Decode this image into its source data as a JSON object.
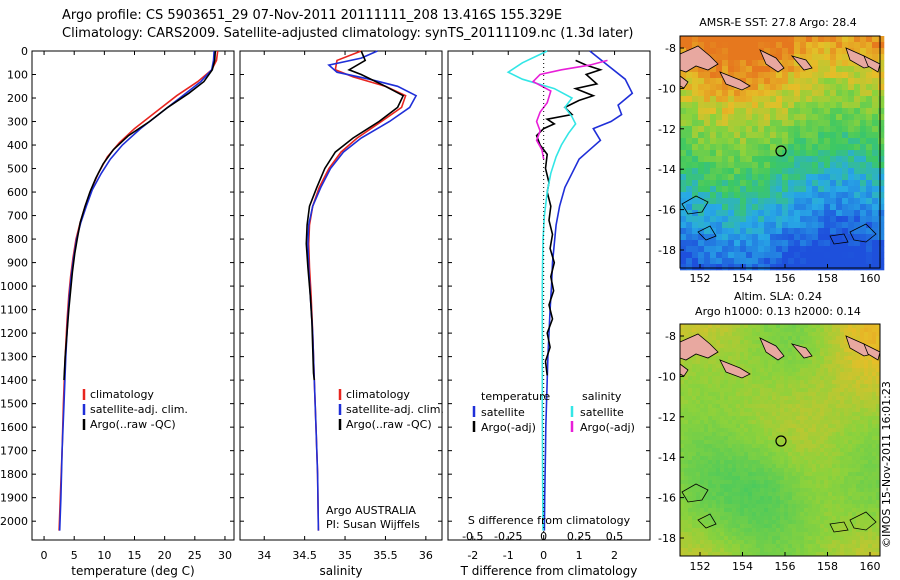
{
  "header": {
    "title_line1": "Argo profile: CS 5903651_29 07-Nov-2011 20111111_208 13.416S 155.329E",
    "title_line2": "Climatology: CARS2009. Satellite-adjusted climatology: synTS_20111109.nc (1.3d later)",
    "timestamp": "©IMOS 15-Nov-2011 16:01:23"
  },
  "colors": {
    "climatology": "#e8251f",
    "satellite": "#1f2fd8",
    "argo": "#000000",
    "sal_sat": "#33e6e6",
    "sal_argo": "#e81fd8"
  },
  "chart_data": [
    {
      "type": "line",
      "id": "temperature",
      "xlabel": "temperature (deg C)",
      "xlim": [
        -2,
        31.5
      ],
      "ylim": [
        0,
        2080
      ],
      "y_ticks": [
        0,
        100,
        200,
        300,
        400,
        500,
        600,
        700,
        800,
        900,
        1000,
        1100,
        1200,
        1300,
        1400,
        1500,
        1600,
        1700,
        1800,
        1900,
        2000
      ],
      "x_ticks": [
        0,
        5,
        10,
        15,
        20,
        25,
        30
      ],
      "series": [
        {
          "name": "climatology",
          "color_key": "climatology",
          "points": [
            [
              28.8,
              0
            ],
            [
              28.6,
              40
            ],
            [
              27.8,
              80
            ],
            [
              25.5,
              130
            ],
            [
              22,
              190
            ],
            [
              18.5,
              260
            ],
            [
              15,
              330
            ],
            [
              12.5,
              390
            ],
            [
              10.5,
              450
            ],
            [
              9,
              520
            ],
            [
              7.8,
              590
            ],
            [
              6.8,
              660
            ],
            [
              6,
              730
            ],
            [
              5.3,
              800
            ],
            [
              4.8,
              880
            ],
            [
              4.4,
              960
            ],
            [
              4.1,
              1040
            ],
            [
              3.8,
              1150
            ],
            [
              3.5,
              1300
            ],
            [
              3.2,
              1500
            ],
            [
              3,
              1700
            ],
            [
              2.7,
              1900
            ],
            [
              2.5,
              2040
            ]
          ]
        },
        {
          "name": "satellite-adj. clim.",
          "color_key": "satellite",
          "points": [
            [
              28.2,
              0
            ],
            [
              28.1,
              40
            ],
            [
              27.8,
              80
            ],
            [
              26,
              130
            ],
            [
              23,
              190
            ],
            [
              19.5,
              260
            ],
            [
              16,
              330
            ],
            [
              13,
              400
            ],
            [
              11,
              460
            ],
            [
              9.5,
              520
            ],
            [
              8,
              590
            ],
            [
              7,
              660
            ],
            [
              6.1,
              730
            ],
            [
              5.4,
              800
            ],
            [
              4.9,
              880
            ],
            [
              4.5,
              960
            ],
            [
              4.2,
              1040
            ],
            [
              3.9,
              1150
            ],
            [
              3.6,
              1300
            ],
            [
              3.3,
              1500
            ],
            [
              3,
              1700
            ],
            [
              2.8,
              1900
            ],
            [
              2.6,
              2040
            ]
          ]
        },
        {
          "name": "Argo(..raw -QC)",
          "color_key": "argo",
          "points": [
            [
              28.4,
              0
            ],
            [
              28.3,
              40
            ],
            [
              27.9,
              80
            ],
            [
              26.5,
              130
            ],
            [
              24,
              180
            ],
            [
              20.5,
              240
            ],
            [
              17.5,
              300
            ],
            [
              14,
              360
            ],
            [
              11.5,
              420
            ],
            [
              9.8,
              480
            ],
            [
              8.6,
              540
            ],
            [
              7.6,
              600
            ],
            [
              6.8,
              660
            ],
            [
              6,
              730
            ],
            [
              5.5,
              800
            ],
            [
              5.1,
              860
            ],
            [
              4.7,
              940
            ],
            [
              4.4,
              1020
            ],
            [
              4.1,
              1100
            ],
            [
              3.8,
              1200
            ],
            [
              3.5,
              1300
            ],
            [
              3.3,
              1400
            ]
          ]
        }
      ],
      "legend": [
        "climatology",
        "satellite-adj. clim.",
        "Argo(..raw -QC)"
      ]
    },
    {
      "type": "line",
      "id": "salinity",
      "xlabel": "salinity",
      "xlim": [
        33.7,
        36.2
      ],
      "ylim": [
        0,
        2080
      ],
      "x_ticks": [
        34,
        34.5,
        35,
        35.5,
        36
      ],
      "series": [
        {
          "name": "climatology",
          "color_key": "climatology",
          "points": [
            [
              35.2,
              0
            ],
            [
              34.9,
              40
            ],
            [
              34.88,
              80
            ],
            [
              35.1,
              110
            ],
            [
              35.5,
              150
            ],
            [
              35.75,
              190
            ],
            [
              35.7,
              240
            ],
            [
              35.45,
              300
            ],
            [
              35.15,
              370
            ],
            [
              34.95,
              430
            ],
            [
              34.8,
              500
            ],
            [
              34.68,
              580
            ],
            [
              34.6,
              660
            ],
            [
              34.56,
              740
            ],
            [
              34.55,
              820
            ],
            [
              34.56,
              920
            ],
            [
              34.58,
              1040
            ],
            [
              34.6,
              1200
            ],
            [
              34.62,
              1400
            ],
            [
              34.64,
              1600
            ],
            [
              34.66,
              1800
            ],
            [
              34.67,
              2040
            ]
          ]
        },
        {
          "name": "satellite-adj. clim.",
          "color_key": "satellite",
          "points": [
            [
              35.4,
              0
            ],
            [
              35.2,
              30
            ],
            [
              34.8,
              60
            ],
            [
              34.9,
              90
            ],
            [
              35.3,
              120
            ],
            [
              35.65,
              150
            ],
            [
              35.88,
              190
            ],
            [
              35.8,
              240
            ],
            [
              35.55,
              300
            ],
            [
              35.2,
              370
            ],
            [
              34.98,
              430
            ],
            [
              34.82,
              500
            ],
            [
              34.7,
              580
            ],
            [
              34.6,
              660
            ],
            [
              34.55,
              740
            ],
            [
              34.54,
              820
            ],
            [
              34.55,
              920
            ],
            [
              34.57,
              1040
            ],
            [
              34.6,
              1200
            ],
            [
              34.62,
              1400
            ],
            [
              34.64,
              1600
            ],
            [
              34.66,
              1800
            ],
            [
              34.67,
              2040
            ]
          ]
        },
        {
          "name": "Argo(..raw -QC)",
          "color_key": "argo",
          "points": [
            [
              35.2,
              0
            ],
            [
              35.25,
              40
            ],
            [
              35.05,
              80
            ],
            [
              35.2,
              100
            ],
            [
              35.5,
              150
            ],
            [
              35.72,
              190
            ],
            [
              35.65,
              240
            ],
            [
              35.42,
              300
            ],
            [
              35.1,
              370
            ],
            [
              34.88,
              430
            ],
            [
              34.75,
              500
            ],
            [
              34.65,
              580
            ],
            [
              34.56,
              660
            ],
            [
              34.53,
              740
            ],
            [
              34.52,
              820
            ],
            [
              34.54,
              920
            ],
            [
              34.57,
              1040
            ],
            [
              34.59,
              1150
            ],
            [
              34.6,
              1260
            ],
            [
              34.61,
              1370
            ],
            [
              34.62,
              1400
            ]
          ]
        }
      ],
      "legend": [
        "climatology",
        "satellite-adj. clim.",
        "Argo(..raw -QC)"
      ],
      "annotation": [
        "Argo AUSTRALIA",
        "PI: Susan Wijffels"
      ]
    },
    {
      "type": "line",
      "id": "difference",
      "xlabel_bottom": "T difference from climatology",
      "xlabel_top": "S difference from climatology",
      "xlim": [
        -2.7,
        3.0
      ],
      "ylim": [
        0,
        2080
      ],
      "t_ticks": [
        -2,
        -1,
        0,
        1,
        2
      ],
      "s_ticks": [
        -0.5,
        -0.25,
        0,
        0.25,
        0.5
      ],
      "s_scale": 4,
      "series": [
        {
          "name": "temperature satellite",
          "color_key": "satellite",
          "points": [
            [
              1.3,
              0
            ],
            [
              1.8,
              60
            ],
            [
              2.3,
              120
            ],
            [
              2.5,
              180
            ],
            [
              2.1,
              230
            ],
            [
              2.2,
              270
            ],
            [
              1.9,
              300
            ],
            [
              1.4,
              330
            ],
            [
              1.6,
              380
            ],
            [
              1.3,
              420
            ],
            [
              1.0,
              460
            ],
            [
              0.8,
              520
            ],
            [
              0.6,
              580
            ],
            [
              0.45,
              660
            ],
            [
              0.35,
              740
            ],
            [
              0.3,
              820
            ],
            [
              0.25,
              900
            ],
            [
              0.22,
              1000
            ],
            [
              0.18,
              1100
            ],
            [
              0.15,
              1200
            ],
            [
              0.12,
              1300
            ],
            [
              0.1,
              1400
            ],
            [
              0.08,
              1500
            ],
            [
              0.06,
              1600
            ],
            [
              0.05,
              1700
            ],
            [
              0.04,
              1800
            ],
            [
              0.03,
              1900
            ],
            [
              0.02,
              2040
            ]
          ]
        },
        {
          "name": "temperature Argo(-adj)",
          "color_key": "argo",
          "points": [
            [
              0.9,
              40
            ],
            [
              1.2,
              60
            ],
            [
              1.6,
              80
            ],
            [
              1.2,
              100
            ],
            [
              1.5,
              140
            ],
            [
              0.9,
              160
            ],
            [
              1.4,
              190
            ],
            [
              1.0,
              210
            ],
            [
              0.6,
              240
            ],
            [
              0.8,
              270
            ],
            [
              0.1,
              290
            ],
            [
              0.3,
              310
            ],
            [
              0,
              330
            ],
            [
              -0.2,
              360
            ],
            [
              -0.1,
              400
            ],
            [
              0.1,
              440
            ],
            [
              0.05,
              500
            ],
            [
              0.15,
              560
            ],
            [
              0.1,
              600
            ],
            [
              0.2,
              660
            ],
            [
              0.15,
              720
            ],
            [
              0.25,
              780
            ],
            [
              0.18,
              840
            ],
            [
              0.3,
              900
            ],
            [
              0.2,
              960
            ],
            [
              0.28,
              1020
            ],
            [
              0.15,
              1080
            ],
            [
              0.25,
              1140
            ],
            [
              0.1,
              1200
            ],
            [
              0.18,
              1260
            ],
            [
              0.05,
              1320
            ],
            [
              0.1,
              1380
            ]
          ]
        },
        {
          "name": "salinity satellite",
          "color_key": "sal_sat",
          "points": [
            [
              0.1,
              0
            ],
            [
              -0.6,
              50
            ],
            [
              -1.0,
              90
            ],
            [
              -0.6,
              120
            ],
            [
              0.3,
              160
            ],
            [
              0.8,
              200
            ],
            [
              0.6,
              240
            ],
            [
              0.8,
              280
            ],
            [
              0.9,
              310
            ],
            [
              0.7,
              350
            ],
            [
              0.5,
              400
            ],
            [
              0.35,
              450
            ],
            [
              0.2,
              520
            ],
            [
              0.1,
              600
            ],
            [
              0.02,
              700
            ],
            [
              -0.02,
              800
            ],
            [
              -0.03,
              900
            ],
            [
              -0.04,
              1000
            ],
            [
              -0.04,
              1200
            ],
            [
              -0.04,
              1500
            ],
            [
              -0.03,
              1800
            ],
            [
              -0.02,
              2040
            ]
          ]
        },
        {
          "name": "salinity Argo(-adj)",
          "color_key": "sal_argo",
          "points": [
            [
              1.8,
              40
            ],
            [
              1.3,
              60
            ],
            [
              0.5,
              80
            ],
            [
              -0.1,
              100
            ],
            [
              -0.3,
              130
            ],
            [
              0.2,
              170
            ],
            [
              0.1,
              220
            ],
            [
              -0.1,
              260
            ],
            [
              -0.2,
              300
            ],
            [
              -0.1,
              340
            ],
            [
              -0.2,
              380
            ],
            [
              -0.05,
              420
            ],
            [
              0,
              460
            ]
          ]
        }
      ],
      "legend_t": [
        "temperature",
        "satellite",
        "Argo(-adj)"
      ],
      "legend_s": [
        "salinity",
        "satellite",
        "Argo(-adj)"
      ]
    },
    {
      "type": "heatmap",
      "id": "map_sst",
      "title": "AMSR-E SST: 27.8 Argo: 28.4",
      "x_ticks": [
        "152",
        "154",
        "156",
        "158",
        "160"
      ],
      "y_ticks": [
        "-8",
        "-10",
        "-12",
        "-14",
        "-16",
        "-18"
      ],
      "argo_position": [
        155.329,
        -13.416
      ]
    },
    {
      "type": "heatmap",
      "id": "map_sla",
      "title_line1": "Altim. SLA: 0.24",
      "title_line2": "Argo h1000: 0.13 h2000: 0.14",
      "x_ticks": [
        "152",
        "154",
        "156",
        "158",
        "160"
      ],
      "y_ticks": [
        "-8",
        "-10",
        "-12",
        "-14",
        "-16",
        "-18"
      ],
      "argo_position": [
        155.329,
        -13.416
      ]
    }
  ]
}
